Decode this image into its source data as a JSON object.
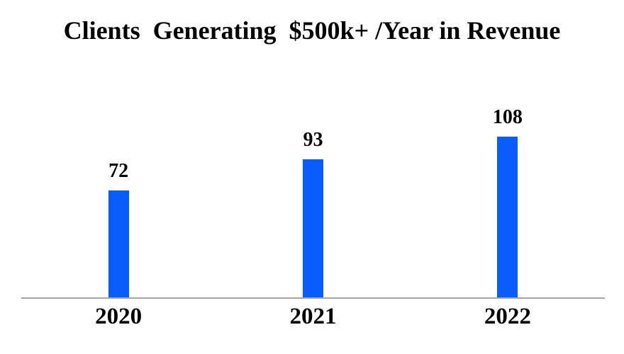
{
  "chart_data": {
    "type": "bar",
    "title": "Clients  Generating  $500k+ /Year in Revenue",
    "categories": [
      "2020",
      "2021",
      "2022"
    ],
    "values": [
      72,
      93,
      108
    ],
    "series": [
      {
        "name": "Clients generating $500k+/year",
        "values": [
          72,
          93,
          108
        ]
      }
    ],
    "data_labels": [
      72,
      93,
      108
    ],
    "xlabel": "",
    "ylabel": "",
    "ylim": [
      0,
      115
    ],
    "grid": false,
    "legend_position": "none",
    "bar_color": "#0b5dfb",
    "axis_line_color": "#a6a6a6",
    "text_color": "#000000",
    "background_color": "#ffffff"
  }
}
